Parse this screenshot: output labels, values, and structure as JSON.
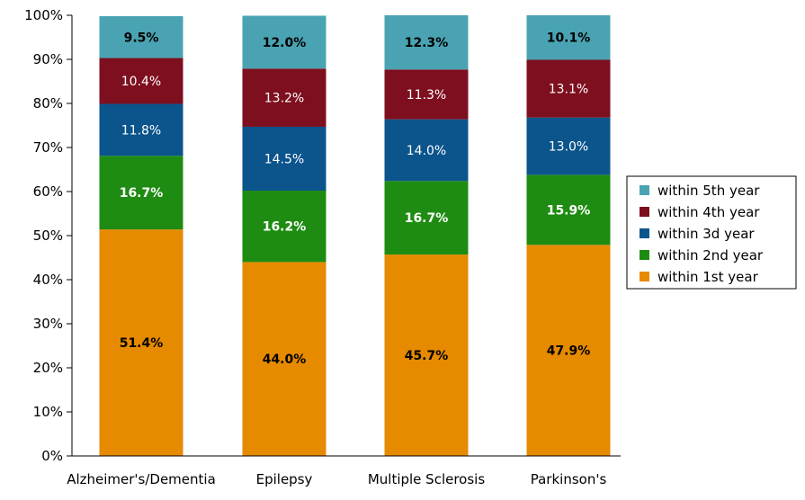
{
  "chart_data": {
    "type": "bar",
    "stacked": true,
    "categories": [
      "Alzheimer's/Dementia",
      "Epilepsy",
      "Multiple Sclerosis",
      "Parkinson's"
    ],
    "series": [
      {
        "name": "within 1st year",
        "color": "#E68A00",
        "values": [
          51.4,
          44.0,
          45.7,
          47.9
        ],
        "labels": [
          "51.4%",
          "44.0%",
          "45.7%",
          "47.9%"
        ],
        "label_color": "#000000",
        "label_bold": true
      },
      {
        "name": "within 2nd year",
        "color": "#1E8C12",
        "values": [
          16.7,
          16.2,
          16.7,
          15.9
        ],
        "labels": [
          "16.7%",
          "16.2%",
          "16.7%",
          "15.9%"
        ],
        "label_color": "#FFFFFF",
        "label_bold": true
      },
      {
        "name": "within 3d year",
        "color": "#0B548C",
        "values": [
          11.8,
          14.5,
          14.0,
          13.0
        ],
        "labels": [
          "11.8%",
          "14.5%",
          "14.0%",
          "13.0%"
        ],
        "label_color": "#FFFFFF",
        "label_bold": false
      },
      {
        "name": "within 4th year",
        "color": "#7E0F1F",
        "values": [
          10.4,
          13.2,
          11.3,
          13.1
        ],
        "labels": [
          "10.4%",
          "13.2%",
          "11.3%",
          "13.1%"
        ],
        "label_color": "#FFFFFF",
        "label_bold": false
      },
      {
        "name": "within 5th year",
        "color": "#4AA3B2",
        "values": [
          9.5,
          12.0,
          12.3,
          10.1
        ],
        "labels": [
          "9.5%",
          "12.0%",
          "12.3%",
          "10.1%"
        ],
        "label_color": "#000000",
        "label_bold": true
      }
    ],
    "yticks": [
      0,
      10,
      20,
      30,
      40,
      50,
      60,
      70,
      80,
      90,
      100
    ],
    "ytick_labels": [
      "0%",
      "10%",
      "20%",
      "30%",
      "40%",
      "50%",
      "60%",
      "70%",
      "80%",
      "90%",
      "100%"
    ],
    "ylim": [
      0,
      100
    ],
    "grid": false,
    "legend_position": "right",
    "legend_order": [
      "within 5th year",
      "within 4th year",
      "within 3d year",
      "within 2nd year",
      "within 1st year"
    ]
  }
}
